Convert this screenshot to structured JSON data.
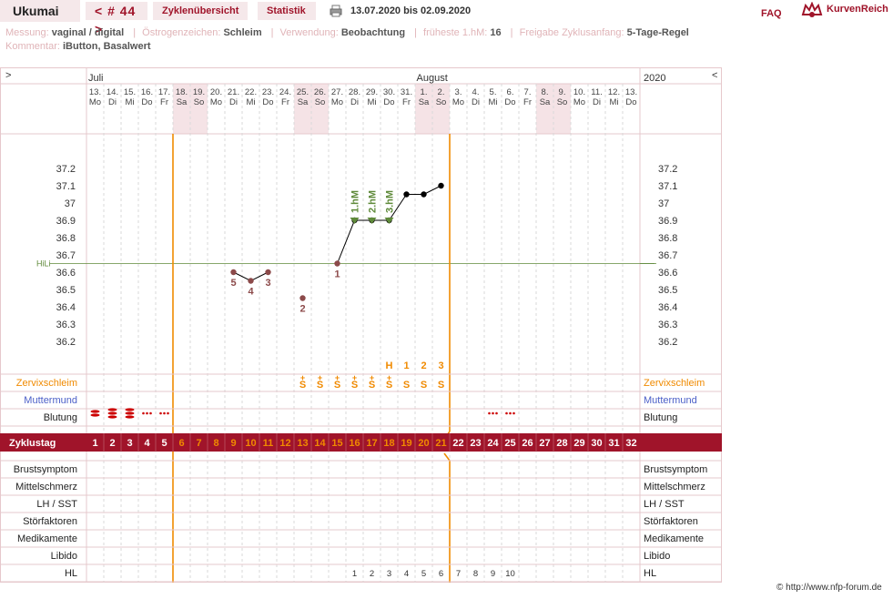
{
  "header": {
    "brand": "Ukumai",
    "cycle_label": "< # 44 >",
    "tab_overview": "Zyklenübersicht",
    "tab_stats": "Statistik",
    "date_range": "13.07.2020 bis 02.09.2020",
    "faq": "FAQ",
    "logo_text": "KurvenReich"
  },
  "info": {
    "messung_label": "Messung:",
    "messung_value": "vaginal / digital",
    "oestrogen_label": "Östrogenzeichen:",
    "oestrogen_value": "Schleim",
    "verwendung_label": "Verwendung:",
    "verwendung_value": "Beobachtung",
    "hm_label": "früheste 1.hM:",
    "hm_value": "16",
    "freigabe_label": "Freigabe Zyklusanfang:",
    "freigabe_value": "5-Tage-Regel",
    "kommentar_label": "Kommentar:",
    "kommentar_value": "iButton, Basalwert"
  },
  "chart": {
    "nav_left": ">",
    "nav_right": "<",
    "month_labels": [
      "Juli",
      "August"
    ],
    "year": "2020",
    "dates": [
      "13.",
      "14.",
      "15.",
      "16.",
      "17.",
      "18.",
      "19.",
      "20.",
      "21.",
      "22.",
      "23.",
      "24.",
      "25.",
      "26.",
      "27.",
      "28.",
      "29.",
      "30.",
      "31.",
      "1.",
      "2.",
      "3.",
      "4.",
      "5.",
      "6.",
      "7.",
      "8.",
      "9.",
      "10.",
      "11.",
      "12.",
      "13."
    ],
    "weekdays": [
      "Mo",
      "Di",
      "Mi",
      "Do",
      "Fr",
      "Sa",
      "So",
      "Mo",
      "Di",
      "Mi",
      "Do",
      "Fr",
      "Sa",
      "So",
      "Mo",
      "Di",
      "Mi",
      "Do",
      "Fr",
      "Sa",
      "So",
      "Mo",
      "Di",
      "Mi",
      "Do",
      "Fr",
      "Sa",
      "So",
      "Mo",
      "Di",
      "Mi",
      "Do"
    ],
    "weekend_idx": [
      5,
      6,
      12,
      13,
      19,
      20,
      26,
      27
    ],
    "temp_ticks": [
      "37.2",
      "37.1",
      "37",
      "36.9",
      "36.8",
      "36.7",
      "36.6",
      "36.5",
      "36.4",
      "36.3",
      "36.2"
    ],
    "hili_label": "HiLi",
    "hili": 36.65,
    "temps": [
      null,
      null,
      null,
      null,
      null,
      null,
      null,
      null,
      36.6,
      36.55,
      36.6,
      null,
      36.45,
      null,
      36.65,
      36.9,
      36.9,
      36.9,
      37.05,
      37.05,
      37.1
    ],
    "point_labels": [
      {
        "day": 9,
        "text": "5"
      },
      {
        "day": 10,
        "text": "4"
      },
      {
        "day": 11,
        "text": "3"
      },
      {
        "day": 13,
        "text": "2"
      },
      {
        "day": 15,
        "text": "1"
      }
    ],
    "hm_labels": [
      {
        "day": 16,
        "text": "1.hM"
      },
      {
        "day": 17,
        "text": "2.hM"
      },
      {
        "day": 18,
        "text": "3.hM"
      }
    ],
    "peak_labels": [
      {
        "day": 18,
        "text": "H"
      },
      {
        "day": 19,
        "text": "1"
      },
      {
        "day": 20,
        "text": "2"
      },
      {
        "day": 21,
        "text": "3"
      }
    ],
    "mucus_plus_days": [
      13,
      14,
      15,
      16,
      17,
      18
    ],
    "mucus_days": [
      13,
      14,
      15,
      16,
      17,
      18,
      19,
      20,
      21
    ],
    "mucus_text": "S",
    "mucus_plus": "+",
    "row_labels_left": [
      "Zervixschleim",
      "Muttermund",
      "Blutung"
    ],
    "row_labels_right": [
      "Zervixschleim",
      "Muttermund",
      "Blutung"
    ],
    "bleeding": [
      {
        "day": 1,
        "kind": "strong2"
      },
      {
        "day": 2,
        "kind": "strong3"
      },
      {
        "day": 3,
        "kind": "strong3"
      },
      {
        "day": 4,
        "kind": "light"
      },
      {
        "day": 5,
        "kind": "light"
      },
      {
        "day": 24,
        "kind": "light"
      },
      {
        "day": 25,
        "kind": "light"
      }
    ],
    "zyklustag_label": "Zyklustag",
    "cycle_days": [
      "1",
      "2",
      "3",
      "4",
      "5",
      "6",
      "7",
      "8",
      "9",
      "10",
      "11",
      "12",
      "13",
      "14",
      "15",
      "16",
      "17",
      "18",
      "19",
      "20",
      "21",
      "22",
      "23",
      "24",
      "25",
      "26",
      "27",
      "28",
      "29",
      "30",
      "31",
      "32"
    ],
    "lower_rows": [
      "Brustsymptom",
      "Mittelschmerz",
      "LH / SST",
      "Störfaktoren",
      "Medikamente",
      "Libido",
      "HL"
    ],
    "hl_values": [
      {
        "day": 16,
        "text": "1"
      },
      {
        "day": 17,
        "text": "2"
      },
      {
        "day": 18,
        "text": "3"
      },
      {
        "day": 19,
        "text": "4"
      },
      {
        "day": 20,
        "text": "5"
      },
      {
        "day": 21,
        "text": "6"
      },
      {
        "day": 22,
        "text": "7"
      },
      {
        "day": 23,
        "text": "8"
      },
      {
        "day": 24,
        "text": "9"
      },
      {
        "day": 25,
        "text": "10"
      }
    ],
    "copyright": "© http://www.nfp-forum.de",
    "colors": {
      "accent": "#a0142a",
      "weekend": "#f5e3e6",
      "orange": "#f08a00",
      "green": "#5f8a3a",
      "blue": "#4b5fc8",
      "point": "#8c4a4a"
    }
  }
}
